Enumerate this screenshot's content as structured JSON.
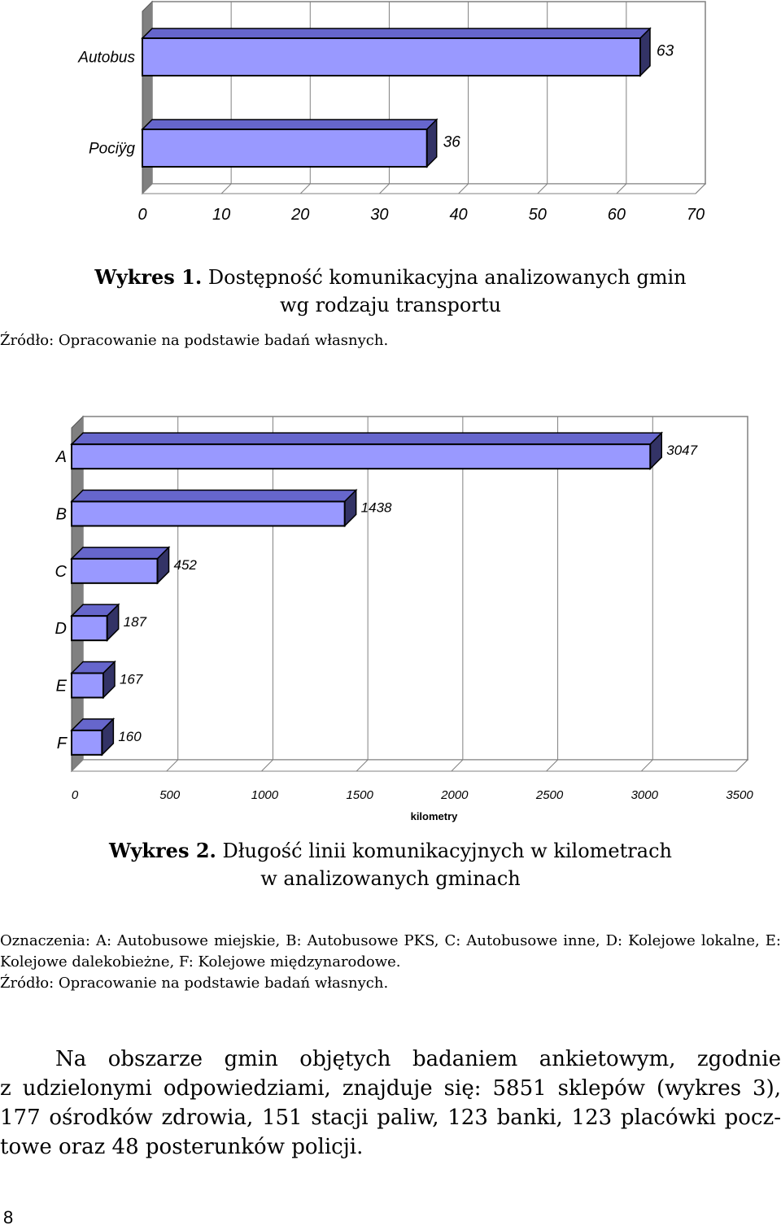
{
  "chart_data": [
    {
      "type": "bar",
      "orientation": "horizontal",
      "categories": [
        "Autobus",
        "Pociÿg"
      ],
      "values": [
        63,
        36
      ],
      "xlim": [
        0,
        70
      ],
      "xticks": [
        "0",
        "10",
        "20",
        "30",
        "40",
        "50",
        "60",
        "70"
      ],
      "xlabel": "",
      "ylabel": "",
      "grid": true,
      "three_d": true,
      "bar_color": "#9999ff",
      "bar_top_color": "#6666cc",
      "bar_side_color": "#333366",
      "wall_color": "#808080"
    },
    {
      "type": "bar",
      "orientation": "horizontal",
      "categories": [
        "A",
        "B",
        "C",
        "D",
        "E",
        "F"
      ],
      "values": [
        3047,
        1438,
        452,
        187,
        167,
        160
      ],
      "xlim": [
        0,
        3500
      ],
      "xticks": [
        "0",
        "500",
        "1000",
        "1500",
        "2000",
        "2500",
        "3000",
        "3500"
      ],
      "xlabel": "kilometry",
      "ylabel": "",
      "grid": true,
      "three_d": true,
      "bar_color": "#9999ff",
      "bar_top_color": "#6666cc",
      "bar_side_color": "#333366",
      "wall_color": "#808080"
    }
  ],
  "caption1": {
    "prefix": "Wykres 1.",
    "line1": "Dostępność komunikacyjna analizowanych gmin",
    "line2": "wg rodzaju transportu"
  },
  "source1": "Źródło: Opracowanie na podstawie badań własnych.",
  "caption2": {
    "prefix": "Wykres 2.",
    "line1": "Długość linii komunikacyjnych w kilometrach",
    "line2": "w analizowanych gminach"
  },
  "note": "Oznaczenia: A: Autobusowe miejskie, B: Autobusowe PKS, C: Autobusowe inne, D: Kolejowe lokalne, E: Kolejowe dalekobieżne, F: Kolejowe międzynarodowe.",
  "source2": "Źródło: Opracowanie na podstawie badań własnych.",
  "paragraph": {
    "line1": "Na obszarze gmin objętych badaniem ankietowym, zgodnie",
    "line2": "z udzielonymi odpowiedziami, znajduje się: 5851 sklepów (wykres 3),",
    "line3": "177 ośrodków zdrowia, 151 stacji paliw, 123 banki, 123 placówki pocz-",
    "line4": "towe oraz 48 posterunków policji."
  },
  "page_number": "8"
}
